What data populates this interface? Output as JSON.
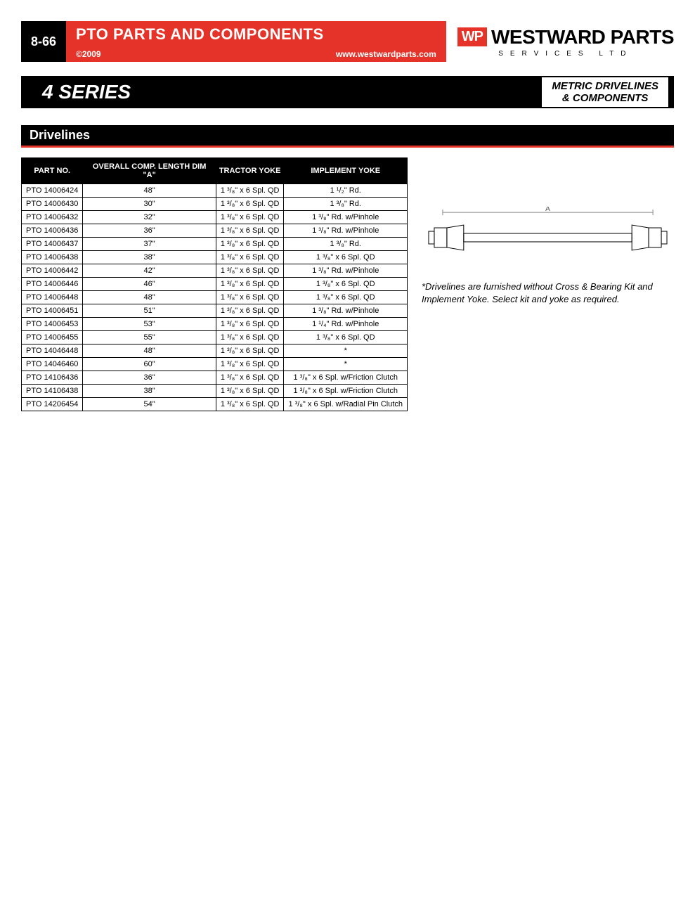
{
  "page_number": "8-66",
  "header_title": "PTO PARTS AND COMPONENTS",
  "copyright": "©2009",
  "website": "www.westwardparts.com",
  "logo_badge": "WP",
  "logo_name": "WESTWARD PARTS",
  "logo_sub": "SERVICES LTD",
  "series_label": "4 SERIES",
  "series_right_line1": "METRIC DRIVELINES",
  "series_right_line2": "& COMPONENTS",
  "section_title": "Drivelines",
  "note_text": "*Drivelines are furnished without Cross & Bearing Kit and Implement Yoke. Select kit and yoke as required.",
  "diagram_label": "A",
  "colors": {
    "red": "#e63329",
    "black": "#000000",
    "white": "#ffffff"
  },
  "table": {
    "columns": [
      "PART NO.",
      "OVERALL COMP. LENGTH DIM \"A\"",
      "TRACTOR YOKE",
      "IMPLEMENT YOKE"
    ],
    "rows": [
      [
        "PTO 14006424",
        "48\"",
        "1 ³/₈\" x 6 Spl. QD",
        "1 ¹/₂\" Rd."
      ],
      [
        "PTO 14006430",
        "30\"",
        "1 ³/₈\" x 6 Spl. QD",
        "1 ³/₈\" Rd."
      ],
      [
        "PTO 14006432",
        "32\"",
        "1 ³/₈\" x 6 Spl. QD",
        "1 ³/₈\" Rd. w/Pinhole"
      ],
      [
        "PTO 14006436",
        "36\"",
        "1 ³/₈\" x 6 Spl. QD",
        "1 ³/₈\" Rd. w/Pinhole"
      ],
      [
        "PTO 14006437",
        "37\"",
        "1 ³/₈\" x 6 Spl. QD",
        "1 ³/₈\" Rd."
      ],
      [
        "PTO 14006438",
        "38\"",
        "1 ³/₈\" x 6 Spl. QD",
        "1 ³/₈\" x 6 Spl. QD"
      ],
      [
        "PTO 14006442",
        "42\"",
        "1 ³/₈\" x 6 Spl. QD",
        "1 ³/₈\" Rd. w/Pinhole"
      ],
      [
        "PTO 14006446",
        "46\"",
        "1 ³/₈\" x 6 Spl. QD",
        "1 ³/₈\" x 6 Spl. QD"
      ],
      [
        "PTO 14006448",
        "48\"",
        "1 ³/₈\" x 6 Spl. QD",
        "1 ³/₈\" x 6 Spl. QD"
      ],
      [
        "PTO 14006451",
        "51\"",
        "1 ³/₈\" x 6 Spl. QD",
        "1 ³/₈\" Rd. w/Pinhole"
      ],
      [
        "PTO 14006453",
        "53\"",
        "1 ³/₈\" x 6 Spl. QD",
        "1 ¹/₄\" Rd. w/Pinhole"
      ],
      [
        "PTO 14006455",
        "55\"",
        "1 ³/₈\" x 6 Spl. QD",
        "1 ³/₈\" x 6 Spl. QD"
      ],
      [
        "PTO 14046448",
        "48\"",
        "1 ³/₈\" x 6 Spl. QD",
        "*"
      ],
      [
        "PTO 14046460",
        "60\"",
        "1 ³/₈\" x 6 Spl. QD",
        "*"
      ],
      [
        "PTO 14106436",
        "36\"",
        "1 ³/₈\" x 6 Spl. QD",
        "1 ³/₈\" x 6 Spl. w/Friction Clutch"
      ],
      [
        "PTO 14106438",
        "38\"",
        "1 ³/₈\" x 6 Spl. QD",
        "1 ³/₈\" x 6 Spl. w/Friction Clutch"
      ],
      [
        "PTO 14206454",
        "54\"",
        "1 ³/₈\" x 6 Spl. QD",
        "1 ³/₈\" x 6 Spl. w/Radial Pin Clutch"
      ]
    ]
  }
}
